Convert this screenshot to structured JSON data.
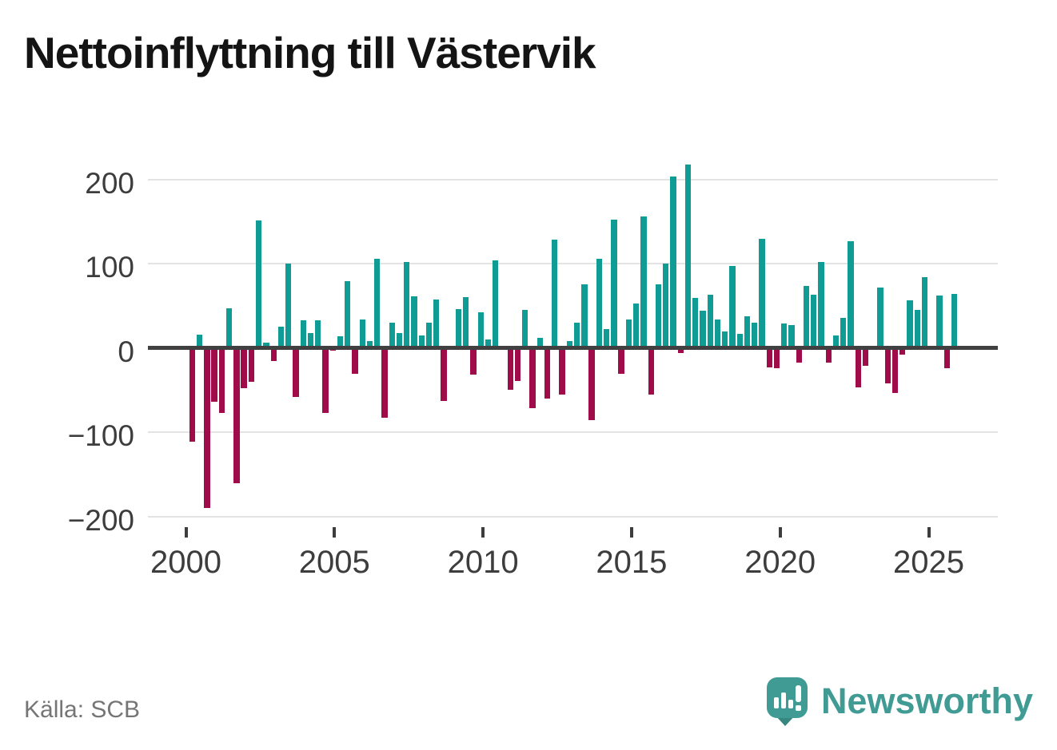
{
  "header": {
    "title": "Nettoinflyttning till Västervik"
  },
  "footer": {
    "source": "Källa: SCB",
    "brand": "Newsworthy"
  },
  "chart_data": {
    "type": "bar",
    "title": "Nettoinflyttning till Västervik",
    "x_unit": "quarter",
    "start_period": "2000-Q1",
    "end_period": "2025-Q4",
    "series": [
      {
        "name": "Nettoinflyttning",
        "values": [
          -111,
          16,
          -190,
          -64,
          -77,
          47,
          -161,
          -48,
          -40,
          151,
          6,
          -16,
          25,
          100,
          -58,
          33,
          18,
          33,
          -77,
          -3,
          14,
          79,
          -31,
          34,
          8,
          106,
          -83,
          30,
          18,
          102,
          61,
          15,
          30,
          57,
          -63,
          0,
          46,
          60,
          -32,
          42,
          10,
          104,
          0,
          -50,
          -39,
          45,
          -72,
          12,
          -60,
          128,
          -55,
          8,
          30,
          75,
          -86,
          106,
          22,
          152,
          -31,
          34,
          53,
          156,
          -55,
          75,
          100,
          203,
          -6,
          218,
          59,
          44,
          63,
          34,
          19,
          97,
          17,
          37,
          30,
          129,
          -23,
          -24,
          29,
          27,
          -18,
          73,
          63,
          102,
          -18,
          15,
          36,
          127,
          -47,
          -21,
          0,
          72,
          -42,
          -54,
          -8,
          56,
          45,
          84,
          0,
          62,
          -24,
          64
        ]
      }
    ],
    "y_ticks": [
      200,
      100,
      0,
      -100,
      -200
    ],
    "x_tick_labels": [
      "2000",
      "2005",
      "2010",
      "2015",
      "2020",
      "2025"
    ],
    "ylim": [
      -220,
      230
    ],
    "grid": "horizontal",
    "legend": "none",
    "colors": {
      "positive": "#0e9c94",
      "negative": "#a00c49"
    }
  }
}
